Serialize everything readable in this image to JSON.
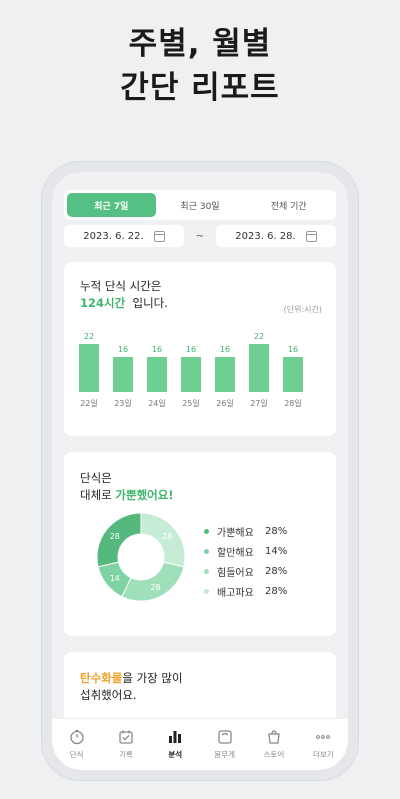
{
  "headline": {
    "line1": "주별, 월별",
    "line2": "간단 리포트"
  },
  "tabs": [
    {
      "label": "최근 7일",
      "active": true
    },
    {
      "label": "최근 30일",
      "active": false
    },
    {
      "label": "전체 기간",
      "active": false
    }
  ],
  "date_range": {
    "start": "2023. 6. 22.",
    "separator": "~",
    "end": "2023. 6. 28."
  },
  "fasting_card": {
    "title_line1": "누적 단식 시간은",
    "total": "124시간",
    "title_suffix": "입니다.",
    "unit": "(단위:시간)"
  },
  "chart_data": {
    "type": "bar",
    "categories": [
      "22일",
      "23일",
      "24일",
      "25일",
      "26일",
      "27일",
      "28일"
    ],
    "values": [
      22,
      16,
      16,
      16,
      16,
      22,
      16
    ],
    "ylabel": "(단위:시간)",
    "ylim": [
      0,
      24
    ],
    "color": "#6fcf92"
  },
  "mood_card": {
    "title_line1": "단식은",
    "title_line2_prefix": "대체로 ",
    "highlight": "가뿐했어요!",
    "donut": [
      {
        "name": "가뿐해요",
        "percent": "28%",
        "value": 28,
        "color": "#55b87d"
      },
      {
        "name": "할만해요",
        "percent": "14%",
        "value": 14,
        "color": "#7fd2a2"
      },
      {
        "name": "힘들어요",
        "percent": "28%",
        "value": 28,
        "color": "#9fdfba"
      },
      {
        "name": "배고파요",
        "percent": "28%",
        "value": 28,
        "color": "#c6ecd6"
      }
    ]
  },
  "nutrient_card": {
    "highlight": "탄수화물",
    "line1_suffix": "을 가장 많이",
    "line2": "섭취했어요."
  },
  "tabbar": [
    {
      "label": "단식",
      "icon": "timer-icon",
      "active": false
    },
    {
      "label": "기록",
      "icon": "check-calendar-icon",
      "active": false
    },
    {
      "label": "분석",
      "icon": "bar-chart-icon",
      "active": true
    },
    {
      "label": "몸무게",
      "icon": "scale-icon",
      "active": false
    },
    {
      "label": "스토어",
      "icon": "shopping-bag-icon",
      "active": false
    },
    {
      "label": "더보기",
      "icon": "more-dots-icon",
      "active": false
    }
  ]
}
